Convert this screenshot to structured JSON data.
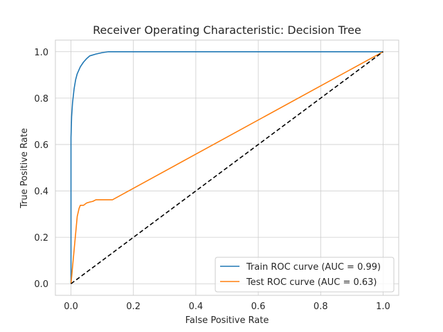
{
  "chart_data": {
    "type": "line",
    "title": "Receiver Operating Characteristic: Decision Tree",
    "xlabel": "False Positive Rate",
    "ylabel": "True Positive Rate",
    "xlim": [
      -0.05,
      1.05
    ],
    "ylim": [
      -0.05,
      1.05
    ],
    "xticks": [
      0.0,
      0.2,
      0.4,
      0.6,
      0.8,
      1.0
    ],
    "yticks": [
      0.0,
      0.2,
      0.4,
      0.6,
      0.8,
      1.0
    ],
    "xtick_labels": [
      "0.0",
      "0.2",
      "0.4",
      "0.6",
      "0.8",
      "1.0"
    ],
    "ytick_labels": [
      "0.0",
      "0.2",
      "0.4",
      "0.6",
      "0.8",
      "1.0"
    ],
    "grid": true,
    "legend_position": "lower-right",
    "series": [
      {
        "name": "Train ROC curve (AUC = 0.99)",
        "color": "#1f77b4",
        "x": [
          0.0,
          0.0,
          0.002,
          0.005,
          0.01,
          0.015,
          0.02,
          0.03,
          0.04,
          0.05,
          0.06,
          0.08,
          0.1,
          0.12,
          0.2,
          0.5,
          1.0
        ],
        "y": [
          0.0,
          0.63,
          0.72,
          0.78,
          0.84,
          0.88,
          0.905,
          0.935,
          0.955,
          0.97,
          0.982,
          0.99,
          0.996,
          1.0,
          1.0,
          1.0,
          1.0
        ]
      },
      {
        "name": "Test ROC curve (AUC = 0.63)",
        "color": "#ff7f0e",
        "x": [
          0.0,
          0.02,
          0.026,
          0.03,
          0.04,
          0.05,
          0.06,
          0.07,
          0.08,
          0.1,
          0.12,
          0.133,
          1.0
        ],
        "y": [
          0.0,
          0.29,
          0.325,
          0.338,
          0.338,
          0.348,
          0.352,
          0.355,
          0.362,
          0.362,
          0.362,
          0.362,
          1.0
        ]
      },
      {
        "name": "",
        "color": "#000000",
        "dashed": true,
        "x": [
          0.0,
          1.0
        ],
        "y": [
          0.0,
          1.0
        ]
      }
    ]
  }
}
